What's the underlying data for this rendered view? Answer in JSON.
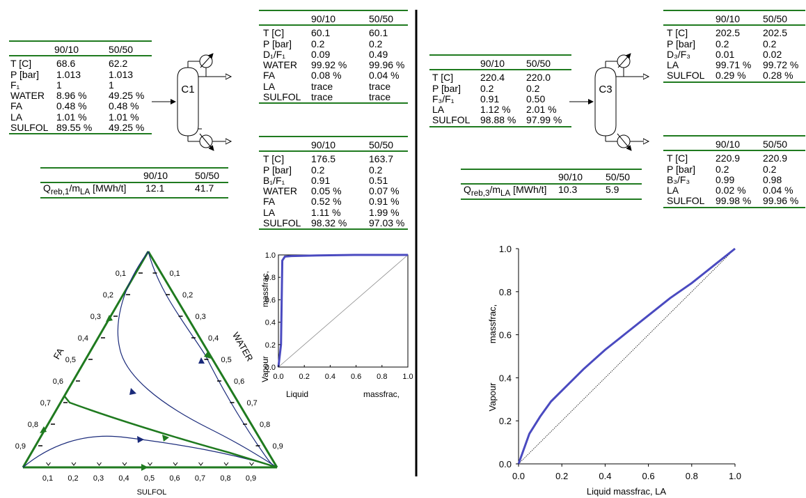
{
  "col_labels": [
    "90/10",
    "50/50"
  ],
  "feed1": {
    "rows": [
      {
        "label": "T [C]",
        "a": "68.6",
        "b": "62.2"
      },
      {
        "label": "P [bar]",
        "a": "1.013",
        "b": "1.013"
      },
      {
        "label": "F₁",
        "a": "1",
        "b": "1"
      },
      {
        "label": "WATER",
        "a": "8.96 %",
        "b": "49.25 %"
      },
      {
        "label": "FA",
        "a": "0.48 %",
        "b": "0.48 %"
      },
      {
        "label": "LA",
        "a": "1.01 %",
        "b": "1.01 %"
      },
      {
        "label": "SULFOL",
        "a": "89.55 %",
        "b": "49.25 %"
      }
    ]
  },
  "dist1": {
    "rows": [
      {
        "label": "T [C]",
        "a": "60.1",
        "b": "60.1"
      },
      {
        "label": "P [bar]",
        "a": "0.2",
        "b": "0.2"
      },
      {
        "label": "D₁/F₁",
        "a": "0.09",
        "b": "0.49"
      },
      {
        "label": "WATER",
        "a": "99.92 %",
        "b": "99.96 %"
      },
      {
        "label": "FA",
        "a": "0.08 %",
        "b": "0.04 %"
      },
      {
        "label": "LA",
        "a": "trace",
        "b": "trace"
      },
      {
        "label": "SULFOL",
        "a": "trace",
        "b": "trace"
      }
    ]
  },
  "bot1": {
    "rows": [
      {
        "label": "T [C]",
        "a": "176.5",
        "b": "163.7"
      },
      {
        "label": "P [bar]",
        "a": "0.2",
        "b": "0.2"
      },
      {
        "label": "B₁/F₁",
        "a": "0.91",
        "b": "0.51"
      },
      {
        "label": "WATER",
        "a": "0.05 %",
        "b": "0.07 %"
      },
      {
        "label": "FA",
        "a": "0.52 %",
        "b": "0.91 %"
      },
      {
        "label": "LA",
        "a": "1.11 %",
        "b": "1.99 %"
      },
      {
        "label": "SULFOL",
        "a": "98.32 %",
        "b": "97.03 %"
      }
    ]
  },
  "qreb1": {
    "label": "Q<sub>reb,1</sub>/m<sub>LA</sub> [MWh/t]",
    "a": "12.1",
    "b": "41.7"
  },
  "feed3": {
    "rows": [
      {
        "label": "T [C]",
        "a": "220.4",
        "b": "220.0"
      },
      {
        "label": "P [bar]",
        "a": "0.2",
        "b": "0.2"
      },
      {
        "label": "F₃/F₁",
        "a": "0.91",
        "b": "0.50"
      },
      {
        "label": "LA",
        "a": "1.12 %",
        "b": "2.01 %"
      },
      {
        "label": "SULFOL",
        "a": "98.88 %",
        "b": "97.99 %"
      }
    ]
  },
  "dist3": {
    "rows": [
      {
        "label": "T [C]",
        "a": "202.5",
        "b": "202.5"
      },
      {
        "label": "P [bar]",
        "a": "0.2",
        "b": "0.2"
      },
      {
        "label": "D₃/F₃",
        "a": "0.01",
        "b": "0.02"
      },
      {
        "label": "LA",
        "a": "99.71 %",
        "b": "99.72 %"
      },
      {
        "label": "SULFOL",
        "a": "0.29 %",
        "b": "0.28 %"
      }
    ]
  },
  "bot3": {
    "rows": [
      {
        "label": "T [C]",
        "a": "220.9",
        "b": "220.9"
      },
      {
        "label": "P [bar]",
        "a": "0.2",
        "b": "0.2"
      },
      {
        "label": "B₃/F₃",
        "a": "0.99",
        "b": "0.98"
      },
      {
        "label": "LA",
        "a": "0.02 %",
        "b": "0.04 %"
      },
      {
        "label": "SULFOL",
        "a": "99.98 %",
        "b": "99.96 %"
      }
    ]
  },
  "qreb3": {
    "label": "Q<sub>reb,3</sub>/m<sub>LA</sub> [MWh/t]",
    "a": "10.3",
    "b": "5.9"
  },
  "column1_label": "C1",
  "column3_label": "C3",
  "ternary": {
    "left_axis_label": "FA",
    "right_axis_label": "WATER",
    "bottom_axis_label": "SULFOL",
    "ticks": [
      "0,1",
      "0,2",
      "0,3",
      "0,4",
      "0,5",
      "0,6",
      "0,7",
      "0,8",
      "0,9"
    ]
  },
  "small_chart": {
    "xlabel_left": "Liquid",
    "xlabel_right": "massfrac,",
    "ylabel_top": "massfrac,",
    "ylabel_bottom": "Vapour",
    "x_ticks": [
      "0.0",
      "0.2",
      "0.4",
      "0.6",
      "0.8",
      "1.0"
    ],
    "y_ticks": [
      "0.0",
      "0.2",
      "0.4",
      "0.6",
      "0.8",
      "1.0"
    ]
  },
  "big_chart": {
    "xlabel": "Liquid massfrac, LA",
    "ylabel_top": "massfrac,",
    "ylabel_bottom": "Vapour",
    "x_ticks": [
      "0.0",
      "0.2",
      "0.4",
      "0.6",
      "0.8",
      "1.0"
    ],
    "y_ticks": [
      "0.0",
      "0.2",
      "0.4",
      "0.6",
      "0.8",
      "1.0"
    ]
  },
  "colors": {
    "green": "#1f7a1f",
    "navy": "#1a2a7a",
    "blue": "#4a4ac0"
  },
  "chart_data": [
    {
      "type": "line",
      "xlim": [
        0,
        1
      ],
      "ylim": [
        0,
        1
      ],
      "series": [
        {
          "x": [
            0,
            0.02,
            0.03,
            0.05,
            0.1,
            0.3,
            0.6,
            1.0
          ],
          "y": [
            0,
            0.2,
            0.95,
            0.985,
            0.99,
            0.995,
            1.0,
            1.0
          ]
        }
      ],
      "diagonal": true
    },
    {
      "type": "line",
      "xlim": [
        0,
        1
      ],
      "ylim": [
        0,
        1
      ],
      "xlabel": "Liquid massfrac, LA",
      "ylabel": "Vapour massfrac,",
      "series": [
        {
          "x": [
            0,
            0.05,
            0.1,
            0.15,
            0.2,
            0.3,
            0.4,
            0.5,
            0.6,
            0.7,
            0.8,
            0.9,
            1.0
          ],
          "y": [
            0,
            0.14,
            0.22,
            0.29,
            0.34,
            0.44,
            0.53,
            0.61,
            0.69,
            0.77,
            0.84,
            0.92,
            1.0
          ]
        }
      ],
      "diagonal": true
    }
  ]
}
